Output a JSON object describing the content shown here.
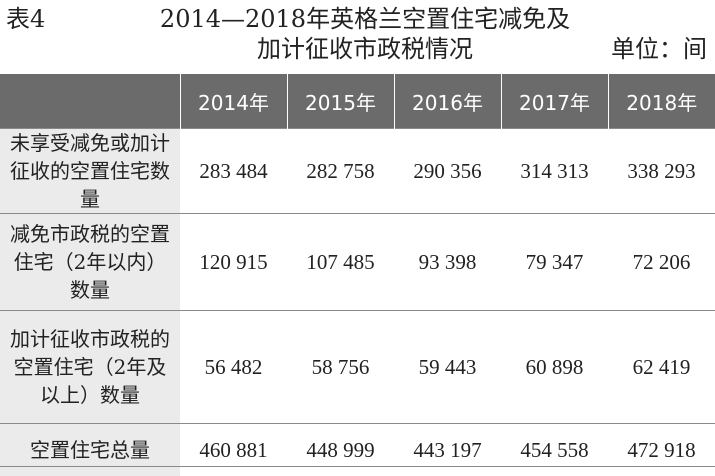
{
  "caption": {
    "label": "表4",
    "title_line1": "2014—2018年英格兰空置住宅减免及",
    "title_line2": "加计征收市政税情况",
    "unit": "单位：间"
  },
  "table": {
    "corner": "",
    "years": [
      "2014年",
      "2015年",
      "2016年",
      "2017年",
      "2018年"
    ],
    "rows": [
      {
        "label": "未享受减免或加计征收的空置住宅数量",
        "values": [
          "283 484",
          "282 758",
          "290 356",
          "314 313",
          "338 293"
        ]
      },
      {
        "label": "减免市政税的空置住宅（2年以内）数量",
        "values": [
          "120 915",
          "107 485",
          "93 398",
          "79 347",
          "72 206"
        ]
      },
      {
        "label": "加计征收市政税的空置住宅（2年及以上）数量",
        "values": [
          "56 482",
          "58 756",
          "59 443",
          "60 898",
          "62 419"
        ]
      },
      {
        "label": "空置住宅总量",
        "values": [
          "460 881",
          "448 999",
          "443 197",
          "454 558",
          "472 918"
        ]
      }
    ]
  }
}
